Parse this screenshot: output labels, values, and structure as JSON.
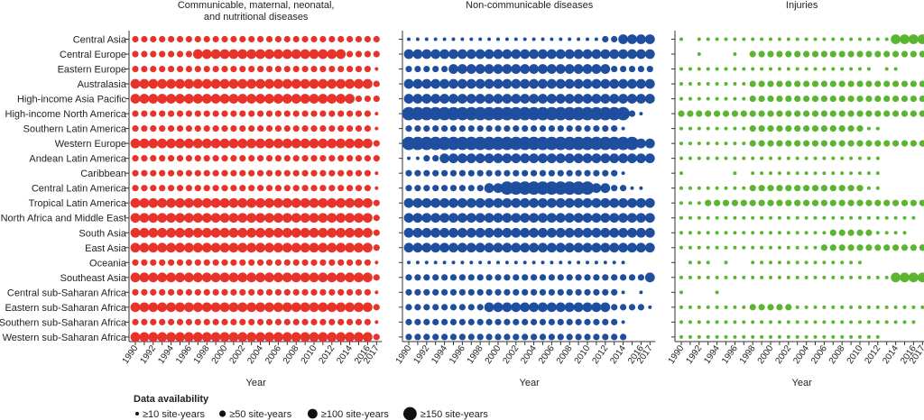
{
  "chart_data": {
    "type": "scatter",
    "encoding": "bubble",
    "xlabel": "Year",
    "years": [
      1990,
      1991,
      1992,
      1993,
      1994,
      1995,
      1996,
      1997,
      1998,
      1999,
      2000,
      2001,
      2002,
      2003,
      2004,
      2005,
      2006,
      2007,
      2008,
      2009,
      2010,
      2011,
      2012,
      2013,
      2014,
      2015,
      2016,
      2017
    ],
    "xticks": [
      1990,
      1992,
      1994,
      1996,
      1998,
      2000,
      2002,
      2004,
      2006,
      2008,
      2010,
      2012,
      2014,
      2016,
      2017
    ],
    "regions": [
      "Central Asia",
      "Central Europe",
      "Eastern Europe",
      "Australasia",
      "High-income Asia Pacific",
      "High-income North America",
      "Southern Latin America",
      "Western Europe",
      "Andean Latin America",
      "Caribbean",
      "Central Latin America",
      "Tropical Latin America",
      "North Africa and Middle East",
      "South Asia",
      "East Asia",
      "Oceania",
      "Southeast Asia",
      "Central sub-Saharan Africa",
      "Eastern sub-Saharan Africa",
      "Southern sub-Saharan Africa",
      "Western sub-Saharan Africa"
    ],
    "legend_title": "Data availability",
    "legend": [
      {
        "label": "≥10 site-years",
        "level": 1
      },
      {
        "label": "≥50 site-years",
        "level": 2
      },
      {
        "label": "≥100 site-years",
        "level": 3
      },
      {
        "label": "≥150 site-years",
        "level": 4
      }
    ],
    "level_meaning": "0 = no data, 1 = ≥10, 2 = ≥50, 3 = ≥100, 4 = ≥150 site-years",
    "panels": [
      {
        "title_lines": [
          "Communicable, maternal, neonatal,",
          "and nutritional diseases"
        ],
        "color": "#e8332b",
        "levels": [
          "2222222222222222222222222222",
          "2222222333333333333333332222",
          "2222222222222222222222222221",
          "3333333333333333333333333332",
          "3333333333333333333333333222",
          "2222222222222222222222222221",
          "2222222222222222222222222221",
          "3333333333333333333333333332",
          "2222222222222222222222222222",
          "2222222222222222222222222221",
          "2222222222222222222222222221",
          "3333333333333333333333333332",
          "3333333333333333333333333332",
          "3333333333333333333333333332",
          "3333333333333333333333333332",
          "2222222222222222222222222221",
          "3333333333333333333333333332",
          "2222222222222222222222222221",
          "3333333333333333333333333332",
          "2222222222222222222222222221",
          "3333333333333333333333333332"
        ]
      },
      {
        "title_lines": [
          "Non-communicable diseases"
        ],
        "color": "#1f4e9e",
        "levels": [
          "1111111111111111111111223333",
          "3333333333333333333333333333",
          "2222233333333333333333322222",
          "3333333333333333333333333333",
          "3333333333333333333333333333",
          "4444444444444444444444444210",
          "2222222222222222222222221000",
          "4444444444444444444444444433",
          "1122333333333333333333333333",
          "2222222222222222222222221000",
          "2222222223344444444443322110",
          "3333333333333333333333333333",
          "3333333333333333333333333333",
          "3333333333333333333333333333",
          "3333333333333333333333333333",
          "1111111111111111111111111000",
          "2222222222222222222222222223",
          "2222222222222222222222221010",
          "2222222223333333333333322221",
          "2222222222222222222222221000",
          "2222222222222222222222222000"
        ]
      },
      {
        "title_lines": [
          "Injuries"
        ],
        "color": "#5cb531",
        "levels": [
          "1011111111111111111111113333",
          "0010001022222222222222222222",
          "1111111111111111111111011000",
          "1111111122222222222222222222",
          "1111111122222222222222222222",
          "2222222222222222222222222222",
          "1111111122222222222221100000",
          "1111111122222222222222222222",
          "1111111111111111111111100000",
          "1000001011111111111111100000",
          "1111111122222222222221100000",
          "1112222222222222222222222222",
          "1111111111111111111111111110",
          "1111111111111111122222111100",
          "1111111111111111222222222222",
          "0111010011111111111110000000",
          "1111111111111111111111113333",
          "1000100000000000000000000000",
          "1111111122222111111111111111",
          "1111111111111111111111111110",
          "1111111111111111111111100000"
        ]
      }
    ]
  }
}
